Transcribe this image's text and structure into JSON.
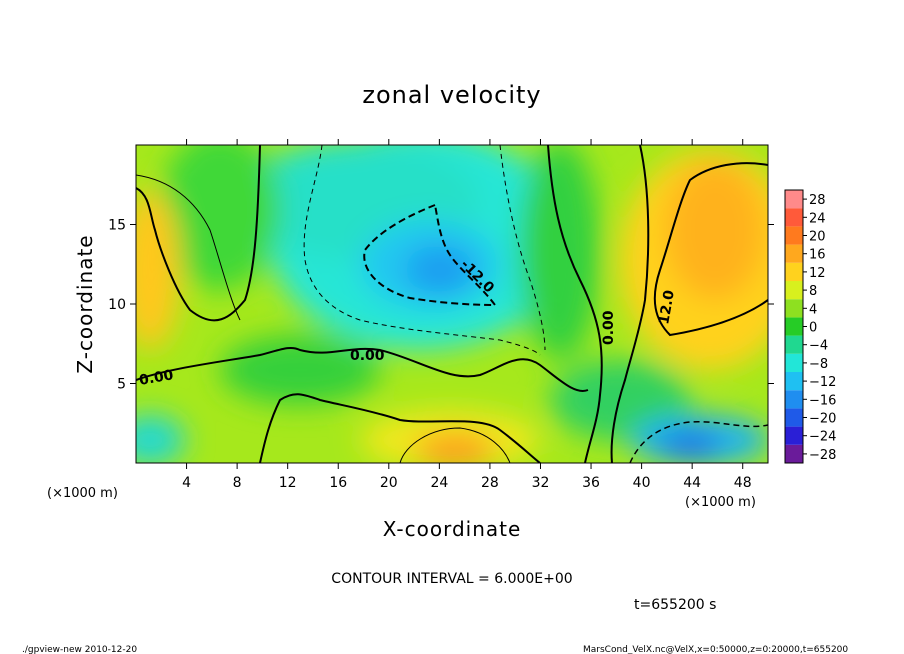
{
  "chart_data": {
    "type": "heatmap",
    "title": "zonal velocity",
    "xlabel": "X-coordinate",
    "ylabel": "Z-coordinate",
    "xunit": "(×1000 m)",
    "yunit": "(×1000 m)",
    "xlim": [
      0,
      50
    ],
    "ylim": [
      0,
      20
    ],
    "xticks": [
      "4",
      "8",
      "12",
      "16",
      "20",
      "24",
      "28",
      "32",
      "36",
      "40",
      "44",
      "48"
    ],
    "xtick_values": [
      4,
      8,
      12,
      16,
      20,
      24,
      28,
      32,
      36,
      40,
      44,
      48
    ],
    "yticks": [
      "5",
      "10",
      "15"
    ],
    "ytick_values": [
      5,
      10,
      15
    ],
    "colorbar": {
      "levels": [
        -28,
        -24,
        -20,
        -16,
        -12,
        -8,
        -4,
        0,
        4,
        8,
        12,
        16,
        20,
        24,
        28
      ],
      "labels": [
        "−28",
        "−24",
        "−20",
        "−16",
        "−12",
        "−8",
        "−4",
        "0",
        "4",
        "8",
        "12",
        "16",
        "20",
        "24",
        "28"
      ],
      "colors": [
        "#6a1b9a",
        "#2a1fd6",
        "#1f5ae8",
        "#1f8ef0",
        "#1fc0f2",
        "#22e6d8",
        "#20d890",
        "#26cc26",
        "#8ee020",
        "#d8f01e",
        "#ffd21e",
        "#ffa81e",
        "#ff7a1e",
        "#ff5a3a",
        "#ff8a8a"
      ]
    },
    "contour_labels": [
      "0.00",
      "0.00",
      "-12.0",
      "0.00",
      "12.0"
    ],
    "contour_interval_text": "CONTOUR INTERVAL = 6.000E+00",
    "time_text": "t=655200 s"
  },
  "footer": {
    "left": "./gpview-new  2010-12-20",
    "right": "MarsCond_VelX.nc@VelX,x=0:50000,z=0:20000,t=655200"
  }
}
